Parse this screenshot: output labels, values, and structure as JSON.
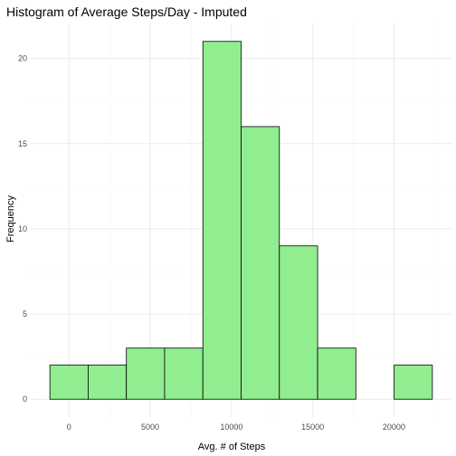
{
  "chart_data": {
    "type": "bar",
    "title": "Histogram of Average Steps/Day - Imputed",
    "xlabel": "Avg. # of Steps",
    "ylabel": "Frequency",
    "bins": [
      {
        "x0": -1177,
        "x1": 1177,
        "value": 2
      },
      {
        "x0": 1177,
        "x1": 3531,
        "value": 2
      },
      {
        "x0": 3531,
        "x1": 5885,
        "value": 3
      },
      {
        "x0": 5885,
        "x1": 8239,
        "value": 3
      },
      {
        "x0": 8239,
        "x1": 10593,
        "value": 21
      },
      {
        "x0": 10593,
        "x1": 12947,
        "value": 16
      },
      {
        "x0": 12947,
        "x1": 15301,
        "value": 9
      },
      {
        "x0": 15301,
        "x1": 17655,
        "value": 3
      },
      {
        "x0": 17655,
        "x1": 20009,
        "value": 0
      },
      {
        "x0": 20009,
        "x1": 22363,
        "value": 2
      }
    ],
    "xticks": [
      0,
      5000,
      10000,
      15000,
      20000
    ],
    "yticks": [
      0,
      5,
      10,
      15,
      20
    ],
    "xlim": [
      -2354,
      23540
    ],
    "ylim": [
      -1.05,
      22.05
    ],
    "grid": true,
    "colors": {
      "bar_fill": "#90EE90",
      "bar_stroke": "#000000",
      "grid_major": "#ebebeb",
      "grid_minor": "#f5f5f5"
    }
  }
}
